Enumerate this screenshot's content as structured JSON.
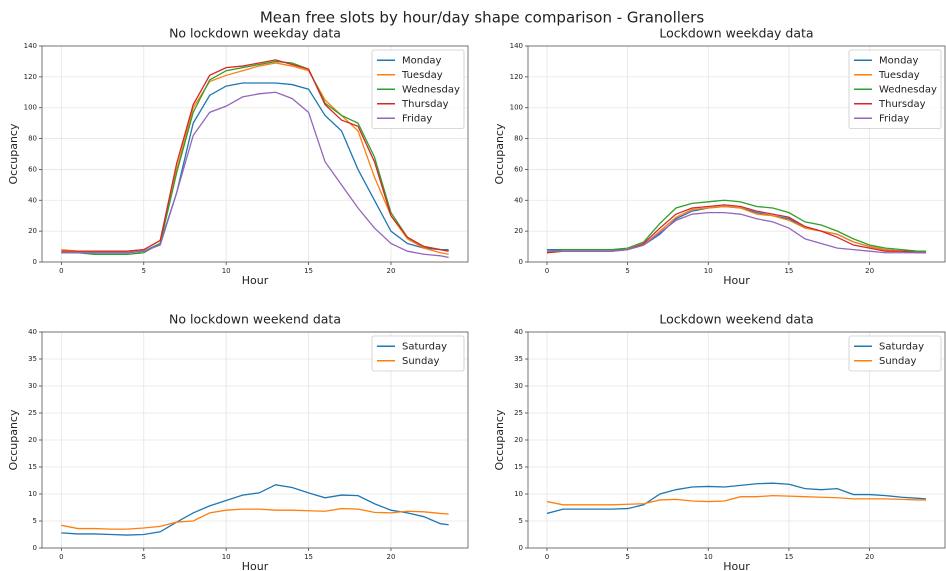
{
  "title": "Mean free slots by hour/day shape comparison - Granollers",
  "chart_data": [
    {
      "type": "line",
      "title": "No lockdown weekday data",
      "xlabel": "Hour",
      "ylabel": "Occupancy",
      "x": [
        0,
        1,
        2,
        3,
        4,
        5,
        6,
        7,
        8,
        9,
        10,
        11,
        12,
        13,
        14,
        15,
        16,
        17,
        18,
        19,
        20,
        21,
        22,
        23,
        23.5
      ],
      "xlim": [
        -1.175,
        24.675
      ],
      "ylim": [
        0,
        140
      ],
      "xticks": [
        0,
        5,
        10,
        15,
        20
      ],
      "yticks": [
        0,
        20,
        40,
        60,
        80,
        100,
        120,
        140
      ],
      "grid": true,
      "legend": "upper right",
      "series": [
        {
          "name": "Monday",
          "color": "#1f77b4",
          "values": [
            6,
            6,
            6,
            6,
            6,
            7,
            12,
            45,
            90,
            108,
            114,
            116,
            116,
            116,
            115,
            112,
            95,
            85,
            60,
            40,
            20,
            12,
            9,
            8,
            8
          ]
        },
        {
          "name": "Tuesday",
          "color": "#ff7f0e",
          "values": [
            8,
            7,
            7,
            7,
            7,
            8,
            14,
            60,
            100,
            117,
            121,
            124,
            127,
            129,
            127,
            124,
            105,
            95,
            85,
            55,
            30,
            15,
            9,
            6,
            5
          ]
        },
        {
          "name": "Wednesday",
          "color": "#2ca02c",
          "values": [
            6,
            6,
            5,
            5,
            5,
            6,
            12,
            58,
            97,
            118,
            124,
            126,
            128,
            130,
            129,
            125,
            103,
            95,
            90,
            68,
            32,
            16,
            10,
            8,
            7
          ]
        },
        {
          "name": "Thursday",
          "color": "#d62728",
          "values": [
            7,
            7,
            7,
            7,
            7,
            8,
            14,
            64,
            102,
            121,
            126,
            127,
            129,
            131,
            128,
            125,
            102,
            92,
            88,
            65,
            30,
            16,
            10,
            8,
            7
          ]
        },
        {
          "name": "Friday",
          "color": "#9467bd",
          "values": [
            6,
            6,
            6,
            6,
            6,
            7,
            11,
            45,
            82,
            97,
            101,
            107,
            109,
            110,
            106,
            97,
            65,
            50,
            35,
            22,
            12,
            7,
            5,
            4,
            3
          ]
        }
      ]
    },
    {
      "type": "line",
      "title": "Lockdown weekday data",
      "xlabel": "Hour",
      "ylabel": "Occupancy",
      "x": [
        0,
        1,
        2,
        3,
        4,
        5,
        6,
        7,
        8,
        9,
        10,
        11,
        12,
        13,
        14,
        15,
        16,
        17,
        18,
        19,
        20,
        21,
        22,
        23,
        23.5
      ],
      "xlim": [
        -1.175,
        24.675
      ],
      "ylim": [
        0,
        140
      ],
      "xticks": [
        0,
        5,
        10,
        15,
        20
      ],
      "yticks": [
        0,
        20,
        40,
        60,
        80,
        100,
        120,
        140
      ],
      "grid": true,
      "legend": "upper right",
      "series": [
        {
          "name": "Monday",
          "color": "#1f77b4",
          "values": [
            8,
            8,
            8,
            8,
            8,
            8,
            11,
            18,
            28,
            33,
            35,
            36,
            35,
            32,
            30,
            28,
            22,
            20,
            18,
            13,
            10,
            8,
            7,
            7,
            7
          ]
        },
        {
          "name": "Tuesday",
          "color": "#ff7f0e",
          "values": [
            6,
            7,
            7,
            7,
            7,
            8,
            11,
            20,
            29,
            34,
            35,
            36,
            35,
            31,
            30,
            27,
            22,
            20,
            18,
            13,
            10,
            8,
            7,
            6,
            6
          ]
        },
        {
          "name": "Wednesday",
          "color": "#2ca02c",
          "values": [
            7,
            8,
            8,
            8,
            8,
            9,
            13,
            25,
            35,
            38,
            39,
            40,
            39,
            36,
            35,
            32,
            26,
            24,
            20,
            15,
            11,
            9,
            8,
            7,
            7
          ]
        },
        {
          "name": "Thursday",
          "color": "#d62728",
          "values": [
            6,
            7,
            7,
            7,
            7,
            8,
            12,
            22,
            31,
            35,
            36,
            37,
            36,
            33,
            31,
            29,
            23,
            20,
            16,
            11,
            9,
            7,
            7,
            6,
            6
          ]
        },
        {
          "name": "Friday",
          "color": "#9467bd",
          "values": [
            7,
            7,
            7,
            7,
            7,
            8,
            11,
            19,
            27,
            31,
            32,
            32,
            31,
            28,
            26,
            22,
            15,
            12,
            9,
            8,
            7,
            6,
            6,
            6,
            6
          ]
        }
      ]
    },
    {
      "type": "line",
      "title": "No lockdown weekend data",
      "xlabel": "Hour",
      "ylabel": "Occupancy",
      "x": [
        0,
        1,
        2,
        3,
        4,
        5,
        6,
        7,
        8,
        9,
        10,
        11,
        12,
        13,
        14,
        15,
        16,
        17,
        18,
        19,
        20,
        21,
        22,
        23,
        23.5
      ],
      "xlim": [
        -1.175,
        24.675
      ],
      "ylim": [
        0,
        40
      ],
      "xticks": [
        0,
        5,
        10,
        15,
        20
      ],
      "yticks": [
        0,
        5,
        10,
        15,
        20,
        25,
        30,
        35,
        40
      ],
      "grid": true,
      "legend": "upper right",
      "series": [
        {
          "name": "Saturday",
          "color": "#1f77b4",
          "values": [
            2.8,
            2.6,
            2.6,
            2.5,
            2.4,
            2.5,
            3,
            4.8,
            6.5,
            7.8,
            8.8,
            9.8,
            10.2,
            11.7,
            11.2,
            10.2,
            9.3,
            9.8,
            9.7,
            8.2,
            7,
            6.5,
            5.8,
            4.5,
            4.3
          ]
        },
        {
          "name": "Sunday",
          "color": "#ff7f0e",
          "values": [
            4.2,
            3.6,
            3.6,
            3.5,
            3.5,
            3.7,
            4,
            4.8,
            5,
            6.5,
            7,
            7.2,
            7.2,
            7,
            7,
            6.9,
            6.8,
            7.3,
            7.2,
            6.6,
            6.5,
            6.8,
            6.7,
            6.4,
            6.3
          ]
        }
      ]
    },
    {
      "type": "line",
      "title": "Lockdown weekend data",
      "xlabel": "Hour",
      "ylabel": "Occupancy",
      "x": [
        0,
        1,
        2,
        3,
        4,
        5,
        6,
        7,
        8,
        9,
        10,
        11,
        12,
        13,
        14,
        15,
        16,
        17,
        18,
        19,
        20,
        21,
        22,
        23,
        23.5
      ],
      "xlim": [
        -1.175,
        24.675
      ],
      "ylim": [
        0,
        40
      ],
      "xticks": [
        0,
        5,
        10,
        15,
        20
      ],
      "yticks": [
        0,
        5,
        10,
        15,
        20,
        25,
        30,
        35,
        40
      ],
      "grid": true,
      "legend": "upper right",
      "series": [
        {
          "name": "Saturday",
          "color": "#1f77b4",
          "values": [
            6.4,
            7.2,
            7.2,
            7.2,
            7.2,
            7.3,
            8,
            10,
            10.8,
            11.3,
            11.4,
            11.3,
            11.6,
            11.9,
            12,
            11.8,
            11,
            10.8,
            11,
            9.9,
            9.9,
            9.7,
            9.4,
            9.2,
            9.1
          ]
        },
        {
          "name": "Sunday",
          "color": "#ff7f0e",
          "values": [
            8.6,
            8,
            8,
            8,
            8,
            8.1,
            8.2,
            8.9,
            9,
            8.7,
            8.6,
            8.7,
            9.5,
            9.5,
            9.7,
            9.6,
            9.5,
            9.4,
            9.3,
            9.1,
            9.1,
            9.1,
            9,
            8.9,
            8.9
          ]
        }
      ]
    }
  ]
}
